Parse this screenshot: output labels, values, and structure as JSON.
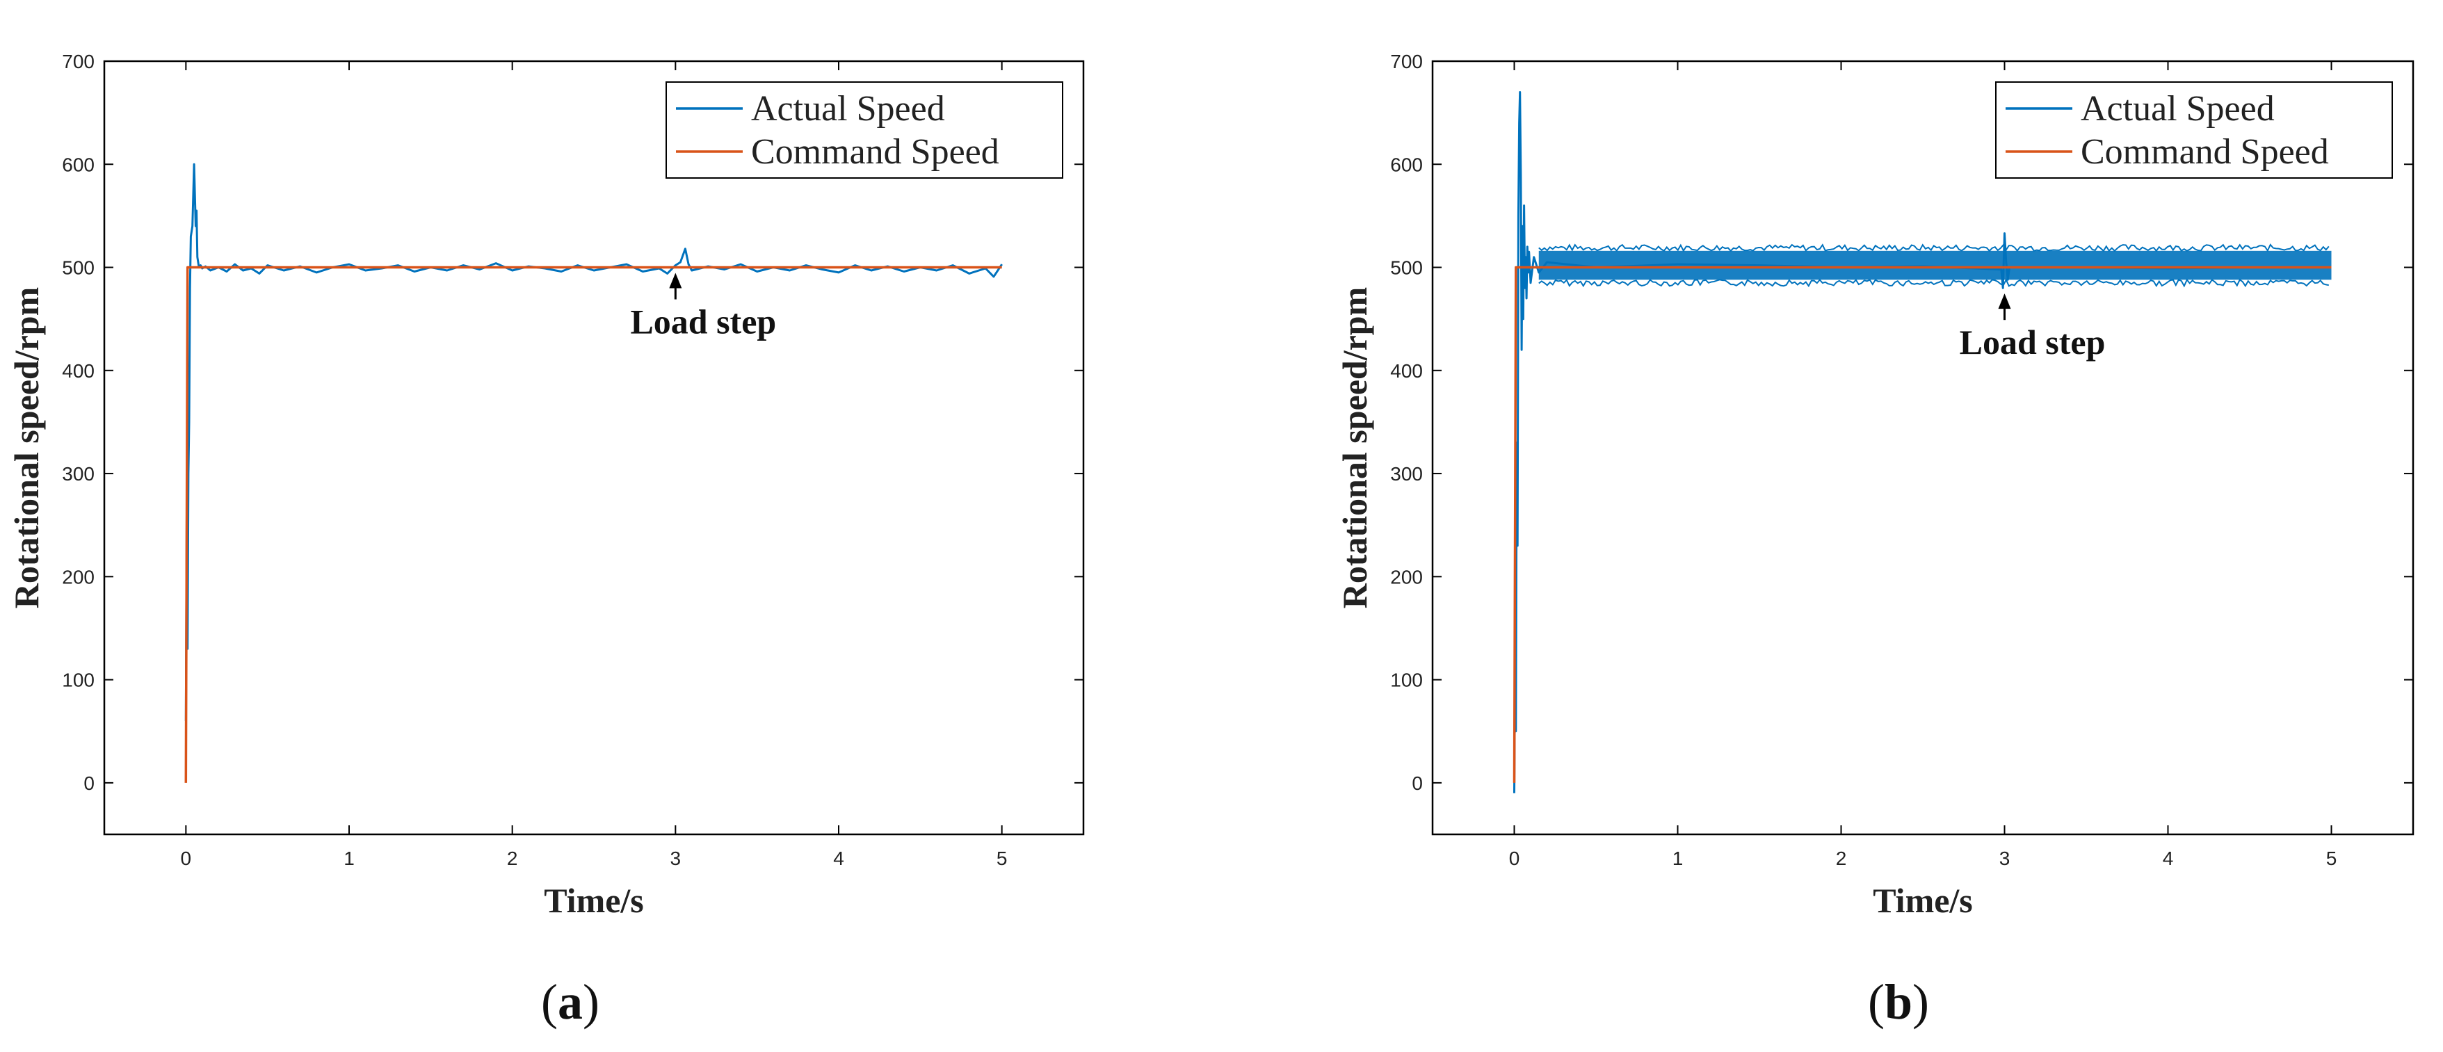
{
  "colors": {
    "actual": "#0072BD",
    "command": "#D95319",
    "axis": "#000000"
  },
  "chart_data": [
    {
      "panel": "a",
      "type": "line",
      "xlabel": "Time/s",
      "ylabel": "Rotational speed/rpm",
      "xlim": [
        -0.5,
        5.5
      ],
      "ylim": [
        -50,
        700
      ],
      "xticks": [
        0,
        1,
        2,
        3,
        4,
        5
      ],
      "yticks": [
        0,
        100,
        200,
        300,
        400,
        500,
        600,
        700
      ],
      "grid": false,
      "legend": "top-right",
      "annotation": {
        "text": "Load step",
        "x": 3,
        "y": 500
      },
      "caption": {
        "open": "(",
        "letter": "a",
        "close": ")"
      },
      "series": [
        {
          "name": "Actual Speed",
          "x": [
            0,
            0.005,
            0.01,
            0.015,
            0.02,
            0.025,
            0.03,
            0.04,
            0.05,
            0.06,
            0.065,
            0.07,
            0.08,
            0.09,
            0.1,
            0.12,
            0.15,
            0.2,
            0.25,
            0.3,
            0.35,
            0.4,
            0.45,
            0.5,
            0.6,
            0.7,
            0.8,
            0.9,
            1.0,
            1.1,
            1.2,
            1.3,
            1.4,
            1.5,
            1.6,
            1.7,
            1.8,
            1.9,
            2.0,
            2.1,
            2.2,
            2.3,
            2.4,
            2.5,
            2.6,
            2.7,
            2.8,
            2.9,
            2.95,
            3.0,
            3.03,
            3.06,
            3.08,
            3.1,
            3.2,
            3.3,
            3.4,
            3.5,
            3.6,
            3.7,
            3.8,
            3.9,
            4.0,
            4.1,
            4.2,
            4.3,
            4.4,
            4.5,
            4.6,
            4.7,
            4.8,
            4.9,
            4.95,
            5.0
          ],
          "y": [
            60,
            260,
            130,
            300,
            350,
            480,
            530,
            540,
            600,
            540,
            555,
            510,
            500,
            502,
            499,
            501,
            497,
            500,
            496,
            503,
            497,
            499,
            494,
            502,
            497,
            501,
            495,
            500,
            503,
            497,
            499,
            502,
            496,
            500,
            497,
            502,
            498,
            504,
            497,
            501,
            499,
            496,
            502,
            497,
            500,
            503,
            496,
            499,
            494,
            502,
            505,
            518,
            503,
            497,
            501,
            498,
            503,
            496,
            500,
            497,
            502,
            498,
            495,
            502,
            497,
            501,
            496,
            500,
            497,
            502,
            494,
            499,
            491,
            503
          ]
        },
        {
          "name": "Command Speed",
          "x": [
            0,
            0.01,
            5
          ],
          "y": [
            0,
            500,
            500
          ]
        }
      ]
    },
    {
      "panel": "b",
      "type": "line",
      "xlabel": "Time/s",
      "ylabel": "Rotational speed/rpm",
      "xlim": [
        -0.5,
        5.5
      ],
      "ylim": [
        -50,
        700
      ],
      "xticks": [
        0,
        1,
        2,
        3,
        4,
        5
      ],
      "yticks": [
        0,
        100,
        200,
        300,
        400,
        500,
        600,
        700
      ],
      "grid": false,
      "legend": "top-right",
      "annotation": {
        "text": "Load step",
        "x": 3,
        "y": 480
      },
      "caption": {
        "open": "(",
        "letter": "b",
        "close": ")"
      },
      "noise_band": {
        "from": 0.15,
        "to": 5.0,
        "low": 488,
        "high": 516
      },
      "series": [
        {
          "name": "Actual Speed",
          "x": [
            0,
            0.005,
            0.01,
            0.015,
            0.02,
            0.025,
            0.03,
            0.035,
            0.04,
            0.045,
            0.05,
            0.055,
            0.06,
            0.065,
            0.07,
            0.075,
            0.08,
            0.085,
            0.09,
            0.1,
            0.12,
            0.15,
            0.2,
            0.5,
            1.0,
            1.5,
            2.0,
            2.5,
            2.98,
            2.99,
            3.0,
            3.01,
            3.02,
            3.03,
            3.5,
            4.0,
            4.5,
            5.0
          ],
          "y": [
            -10,
            120,
            50,
            330,
            230,
            550,
            640,
            670,
            590,
            420,
            540,
            450,
            560,
            480,
            510,
            470,
            520,
            495,
            515,
            485,
            510,
            495,
            505,
            500,
            503,
            502,
            500,
            501,
            498,
            480,
            533,
            505,
            488,
            500,
            500,
            499,
            500,
            500
          ]
        },
        {
          "name": "Command Speed",
          "x": [
            0,
            0.01,
            5
          ],
          "y": [
            0,
            500,
            500
          ]
        }
      ]
    }
  ]
}
